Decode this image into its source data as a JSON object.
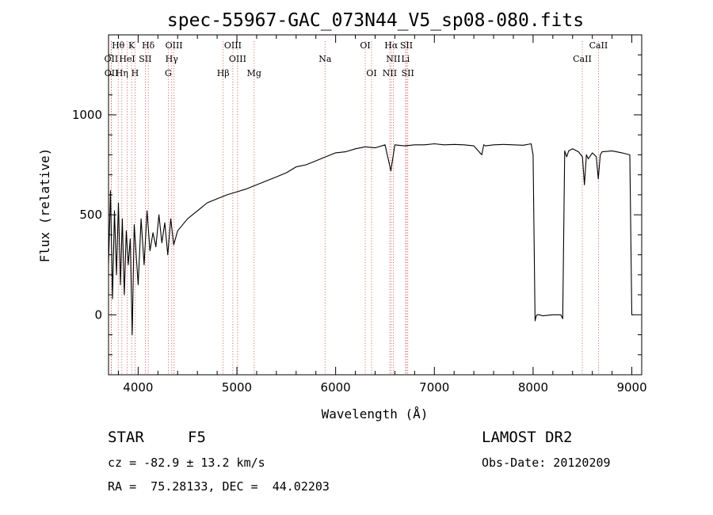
{
  "chart_data": {
    "type": "line",
    "title": "spec-55967-GAC_073N44_V5_sp08-080.fits",
    "xlabel": "Wavelength (Å)",
    "ylabel": "Flux (relative)",
    "xlim": [
      3700,
      9100
    ],
    "ylim": [
      -300,
      1400
    ],
    "xticks": [
      4000,
      5000,
      6000,
      7000,
      8000,
      9000
    ],
    "yticks": [
      0,
      500,
      1000
    ],
    "spectral_lines": [
      {
        "label": "Hθ",
        "wavelength": 3798,
        "row": 0
      },
      {
        "label": "K",
        "wavelength": 3934,
        "row": 0
      },
      {
        "label": "Hδ",
        "wavelength": 4102,
        "row": 0
      },
      {
        "label": "OIII",
        "wavelength": 4363,
        "row": 0
      },
      {
        "label": "OIII",
        "wavelength": 4959,
        "row": 0
      },
      {
        "label": "OI",
        "wavelength": 6300,
        "row": 0
      },
      {
        "label": "Hα",
        "wavelength": 6563,
        "row": 0
      },
      {
        "label": "SII",
        "wavelength": 6717,
        "row": 0
      },
      {
        "label": "CaII",
        "wavelength": 8662,
        "row": 0
      },
      {
        "label": "OII",
        "wavelength": 3727,
        "row": 1
      },
      {
        "label": "HeI",
        "wavelength": 3889,
        "row": 1
      },
      {
        "label": "SII",
        "wavelength": 4072,
        "row": 1
      },
      {
        "label": "Hγ",
        "wavelength": 4340,
        "row": 1
      },
      {
        "label": "OIII",
        "wavelength": 5007,
        "row": 1
      },
      {
        "label": "Na",
        "wavelength": 5893,
        "row": 1
      },
      {
        "label": "NII",
        "wavelength": 6584,
        "row": 1
      },
      {
        "label": "Li",
        "wavelength": 6708,
        "row": 1
      },
      {
        "label": "CaII",
        "wavelength": 8498,
        "row": 1
      },
      {
        "label": "OII",
        "wavelength": 3729,
        "row": 2
      },
      {
        "label": "Hη",
        "wavelength": 3835,
        "row": 2
      },
      {
        "label": "H",
        "wavelength": 3968,
        "row": 2
      },
      {
        "label": "G",
        "wavelength": 4305,
        "row": 2
      },
      {
        "label": "Hβ",
        "wavelength": 4861,
        "row": 2
      },
      {
        "label": "Mg",
        "wavelength": 5175,
        "row": 2
      },
      {
        "label": "OI",
        "wavelength": 6364,
        "row": 2
      },
      {
        "label": "NII",
        "wavelength": 6548,
        "row": 2
      },
      {
        "label": "SII",
        "wavelength": 6731,
        "row": 2
      }
    ],
    "series": [
      {
        "x": [
          3700,
          3720,
          3740,
          3760,
          3780,
          3800,
          3820,
          3840,
          3860,
          3880,
          3900,
          3920,
          3940,
          3960,
          3980,
          4000,
          4030,
          4060,
          4090,
          4120,
          4150,
          4180,
          4210,
          4240,
          4270,
          4300,
          4330,
          4360,
          4400,
          4450,
          4500,
          4600,
          4700,
          4800,
          4900,
          5000,
          5100,
          5200,
          5300,
          5400,
          5500,
          5600,
          5700,
          5800,
          5900,
          6000,
          6100,
          6200,
          6300,
          6400,
          6500,
          6560,
          6600,
          6700,
          6800,
          6900,
          7000,
          7100,
          7200,
          7300,
          7400,
          7480,
          7500,
          7520,
          7600,
          7700,
          7800,
          7900,
          7980,
          8000,
          8020,
          8030,
          8040,
          8060,
          8100,
          8200,
          8280,
          8300,
          8320,
          8340,
          8360,
          8400,
          8460,
          8500,
          8520,
          8540,
          8560,
          8600,
          8640,
          8660,
          8680,
          8700,
          8800,
          8900,
          8980,
          9000,
          9020
        ],
        "y": [
          250,
          620,
          80,
          520,
          200,
          560,
          150,
          480,
          100,
          420,
          250,
          380,
          -100,
          450,
          300,
          150,
          480,
          250,
          520,
          320,
          410,
          340,
          500,
          360,
          460,
          300,
          480,
          350,
          420,
          450,
          480,
          520,
          560,
          580,
          600,
          615,
          630,
          650,
          670,
          690,
          710,
          740,
          750,
          770,
          790,
          810,
          815,
          830,
          840,
          835,
          850,
          720,
          850,
          845,
          850,
          850,
          855,
          850,
          852,
          850,
          845,
          800,
          850,
          845,
          850,
          852,
          850,
          848,
          855,
          800,
          -30,
          -10,
          0,
          0,
          -5,
          0,
          0,
          -20,
          820,
          790,
          820,
          830,
          815,
          790,
          650,
          800,
          780,
          810,
          790,
          680,
          800,
          815,
          820,
          810,
          800,
          0,
          0
        ]
      }
    ]
  },
  "footer": {
    "object": "STAR",
    "subclass": "F5",
    "survey": "LAMOST DR2",
    "cz": "cz = -82.9 ± 13.2 km/s",
    "obs_date": "Obs-Date: 20120209",
    "coords": "RA =  75.28133, DEC =  44.02203"
  }
}
